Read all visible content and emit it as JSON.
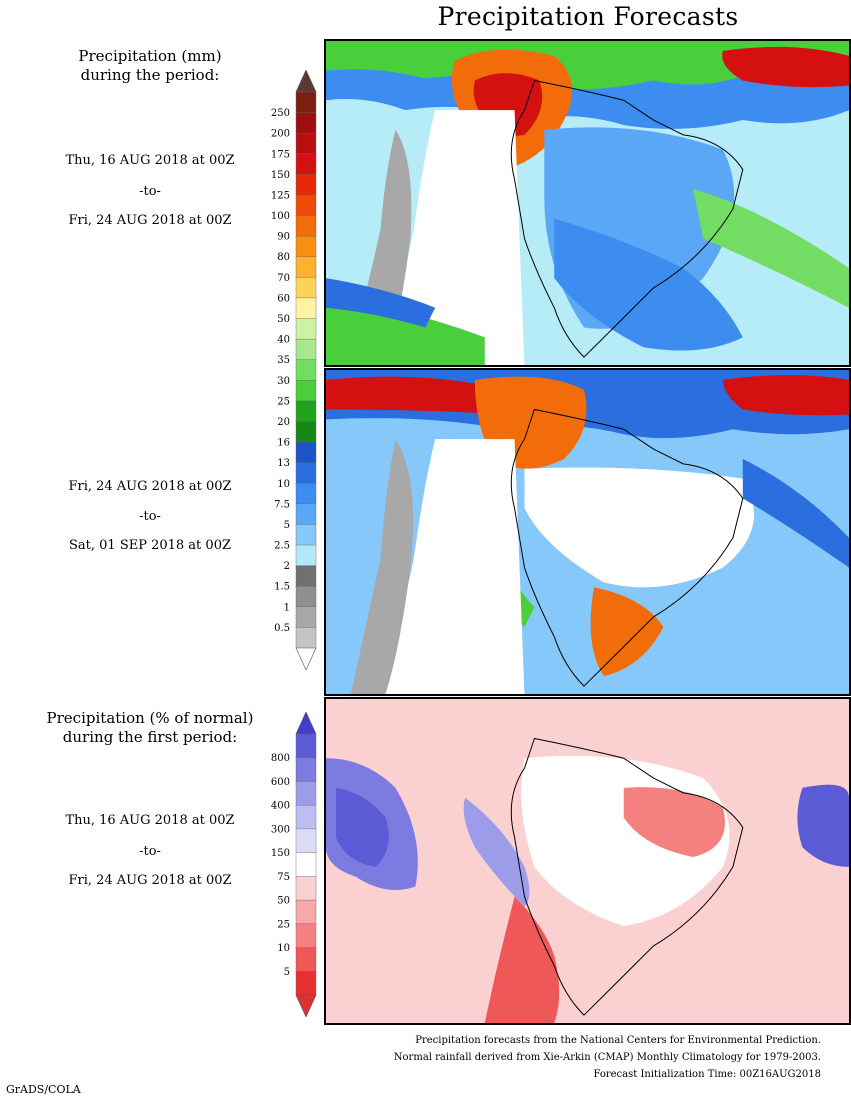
{
  "title": "Precipitation Forecasts",
  "panel1": {
    "heading": [
      "Precipitation (mm)",
      "during the period:"
    ],
    "start": "Thu, 16 AUG 2018 at 00Z",
    "sep": "-to-",
    "end": "Fri, 24 AUG 2018 at 00Z"
  },
  "panel2": {
    "start": "Fri, 24 AUG 2018 at 00Z",
    "sep": "-to-",
    "end": "Sat, 01 SEP 2018 at 00Z"
  },
  "panel3": {
    "heading": [
      "Precipitation (% of normal)",
      "during the first period:"
    ],
    "start": "Thu, 16 AUG 2018 at 00Z",
    "sep": "-to-",
    "end": "Fri, 24 AUG 2018 at 00Z"
  },
  "precip_colorbar": {
    "labels": [
      "250",
      "200",
      "175",
      "150",
      "125",
      "100",
      "90",
      "80",
      "70",
      "60",
      "50",
      "40",
      "35",
      "30",
      "25",
      "20",
      "16",
      "13",
      "10",
      "7.5",
      "5",
      "2.5",
      "2",
      "1.5",
      "1",
      "0.5"
    ],
    "colors": [
      "#7a2010",
      "#9e0f0f",
      "#b81010",
      "#d41010",
      "#e8280a",
      "#f04a0a",
      "#f26d0a",
      "#f7900e",
      "#fbb22e",
      "#fdd25a",
      "#fff3a2",
      "#cdf2a6",
      "#a7e88e",
      "#72dd62",
      "#49cf3c",
      "#1fa51c",
      "#178817",
      "#1e52c8",
      "#2a6ee0",
      "#3d8cf0",
      "#5aa7f5",
      "#86c8fa",
      "#b1e9f7",
      "#707070",
      "#8f8f8f",
      "#a8a8a8",
      "#c4c4c4"
    ],
    "top_arrow_color": "#5a3a30",
    "bottom_arrow_color": "#ffffff"
  },
  "pct_colorbar": {
    "labels": [
      "800",
      "600",
      "400",
      "300",
      "150",
      "75",
      "50",
      "25",
      "10",
      "5"
    ],
    "colors": [
      "#5b5bd6",
      "#7b7be0",
      "#9c9ce8",
      "#bdbdf0",
      "#dcdcf8",
      "#ffffff",
      "#fbd0d0",
      "#f8a8a8",
      "#f48080",
      "#ef5858",
      "#e83030"
    ],
    "top_arrow_color": "#4040cc",
    "bottom_arrow_color": "#e03030"
  },
  "footer": {
    "line1": "Precipitation forecasts from the National Centers for Environmental Prediction.",
    "line2": "Normal rainfall derived from Xie-Arkin (CMAP) Monthly Climatology for 1979-2003.",
    "line3": "Forecast Initialization Time: 00Z16AUG2018",
    "credit": "GrADS/COLA"
  }
}
